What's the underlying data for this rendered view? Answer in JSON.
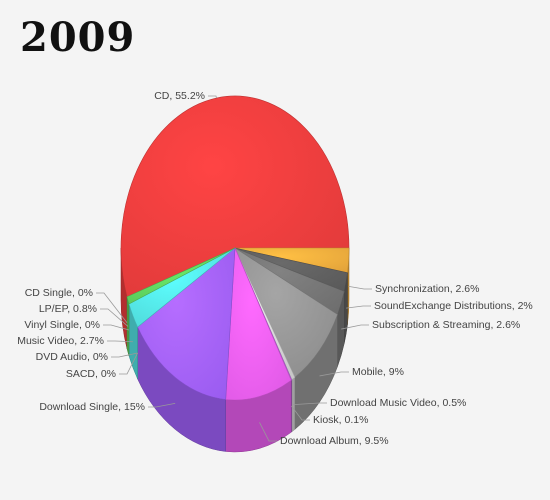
{
  "chart_data": {
    "type": "pie",
    "title": "2009",
    "slices": [
      {
        "label": "CD, 55.2%",
        "name": "CD",
        "value": 55.2,
        "color": "#e03a3a"
      },
      {
        "label": "Synchronization, 2.6%",
        "name": "Synchronization",
        "value": 2.6,
        "color": "#e3a33a"
      },
      {
        "label": "SoundExchange Distributions, 2%",
        "name": "SoundExchange Distributions",
        "value": 2,
        "color": "#5a5a5a"
      },
      {
        "label": "Subscription & Streaming, 2.6%",
        "name": "Subscription & Streaming",
        "value": 2.6,
        "color": "#6e6e6e"
      },
      {
        "label": "Mobile, 9%",
        "name": "Mobile",
        "value": 9,
        "color": "#8c8c8c"
      },
      {
        "label": "Download Music Video, 0.5%",
        "name": "Download Music Video",
        "value": 0.5,
        "color": "#c8c8c8"
      },
      {
        "label": "Kiosk, 0.1%",
        "name": "Kiosk",
        "value": 0.1,
        "color": "#b36fd6"
      },
      {
        "label": "Download Album, 9.5%",
        "name": "Download Album",
        "value": 9.5,
        "color": "#e05ae6"
      },
      {
        "label": "Download Single, 15%",
        "name": "Download Single",
        "value": 15,
        "color": "#9a5cf0"
      },
      {
        "label": "SACD, 0%",
        "name": "SACD",
        "value": 0,
        "color": "#3a4fd8"
      },
      {
        "label": "DVD Audio, 0%",
        "name": "DVD Audio",
        "value": 0,
        "color": "#3a8fd8"
      },
      {
        "label": "Music Video, 2.7%",
        "name": "Music Video",
        "value": 2.7,
        "color": "#4fd8d8"
      },
      {
        "label": "Vinyl Single, 0%",
        "name": "Vinyl Single",
        "value": 0,
        "color": "#3ab0a0"
      },
      {
        "label": "LP/EP, 0.8%",
        "name": "LP/EP",
        "value": 0.8,
        "color": "#5ac85a"
      },
      {
        "label": "CD Single, 0%",
        "name": "CD Single",
        "value": 0,
        "color": "#3aa03a"
      }
    ]
  }
}
